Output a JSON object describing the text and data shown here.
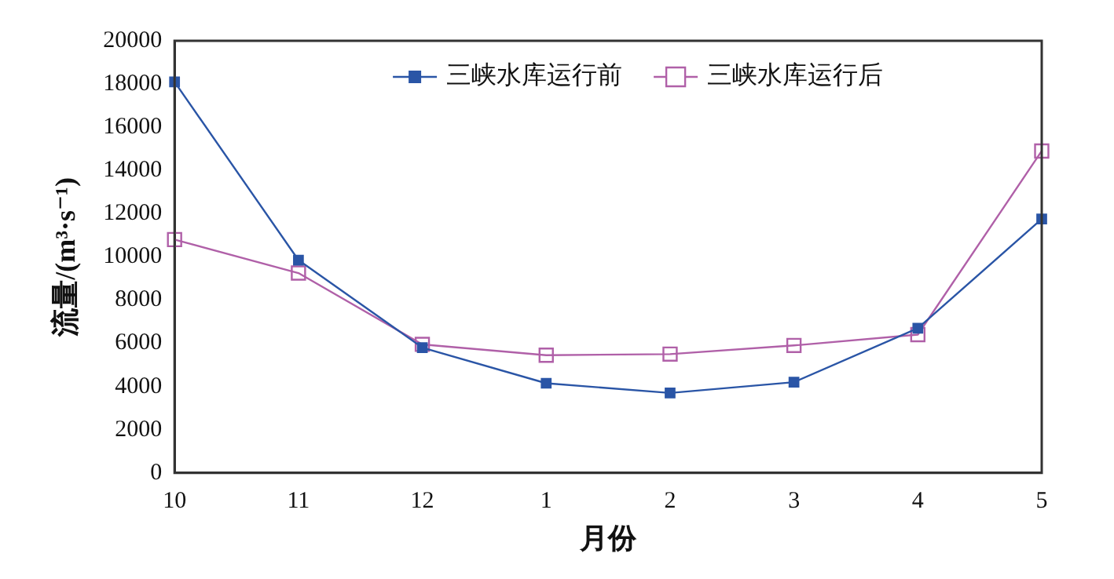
{
  "chart_data": {
    "type": "line",
    "xlabel": "月份",
    "ylabel": "流量/(m³·s⁻¹)",
    "categories": [
      "10",
      "11",
      "12",
      "1",
      "2",
      "3",
      "4",
      "5"
    ],
    "series": [
      {
        "name": "三峡水库运行前",
        "color": "#2a55a6",
        "values": [
          18100,
          9850,
          5800,
          4150,
          3700,
          4200,
          6700,
          11750
        ]
      },
      {
        "name": "三峡水库运行后",
        "color": "#b060a8",
        "values": [
          10800,
          9250,
          5950,
          5450,
          5500,
          5900,
          6400,
          14900
        ]
      }
    ],
    "ylim": [
      0,
      20000
    ],
    "yticks": [
      0,
      2000,
      4000,
      6000,
      8000,
      10000,
      12000,
      14000,
      16000,
      18000,
      20000
    ],
    "grid": false,
    "legend": "top",
    "marker": "square",
    "line_style": "solid"
  }
}
